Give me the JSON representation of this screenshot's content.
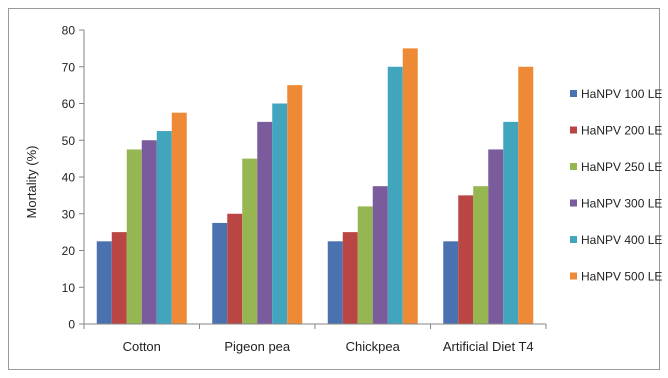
{
  "chart_data": {
    "type": "bar",
    "title": "",
    "xlabel": "",
    "ylabel": "Mortality (%)",
    "ylim": [
      0,
      80
    ],
    "yticks": [
      0,
      10,
      20,
      30,
      40,
      50,
      60,
      70,
      80
    ],
    "grid": false,
    "legend_position": "right",
    "categories": [
      "Cotton",
      "Pigeon pea",
      "Chickpea",
      "Artificial Diet T4"
    ],
    "series": [
      {
        "name": "HaNPV 100 LE",
        "color": "#4a72b0",
        "values": [
          22.5,
          27.5,
          22.5,
          22.5
        ]
      },
      {
        "name": "HaNPV 200 LE",
        "color": "#b94643",
        "values": [
          25,
          30,
          25,
          35
        ]
      },
      {
        "name": "HaNPV 250 LE",
        "color": "#95b651",
        "values": [
          47.5,
          45,
          32,
          37.5
        ]
      },
      {
        "name": "HaNPV 300 LE",
        "color": "#7a5c9c",
        "values": [
          50,
          55,
          37.5,
          47.5
        ]
      },
      {
        "name": "HaNPV 400 LE",
        "color": "#41a5be",
        "values": [
          52.5,
          60,
          70,
          55
        ]
      },
      {
        "name": "HaNPV 500 LE",
        "color": "#ee8a35",
        "values": [
          57.5,
          65,
          75,
          70
        ]
      }
    ]
  }
}
